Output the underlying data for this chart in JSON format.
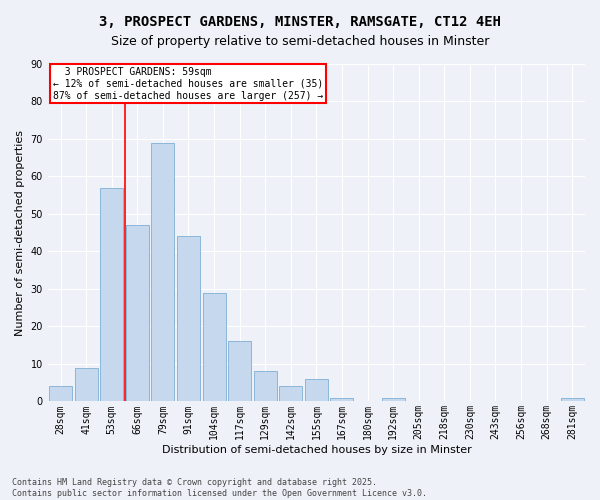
{
  "title": "3, PROSPECT GARDENS, MINSTER, RAMSGATE, CT12 4EH",
  "subtitle": "Size of property relative to semi-detached houses in Minster",
  "xlabel": "Distribution of semi-detached houses by size in Minster",
  "ylabel": "Number of semi-detached properties",
  "categories": [
    "28sqm",
    "41sqm",
    "53sqm",
    "66sqm",
    "79sqm",
    "91sqm",
    "104sqm",
    "117sqm",
    "129sqm",
    "142sqm",
    "155sqm",
    "167sqm",
    "180sqm",
    "192sqm",
    "205sqm",
    "218sqm",
    "230sqm",
    "243sqm",
    "256sqm",
    "268sqm",
    "281sqm"
  ],
  "values": [
    4,
    9,
    57,
    47,
    69,
    44,
    29,
    16,
    8,
    4,
    6,
    1,
    0,
    1,
    0,
    0,
    0,
    0,
    0,
    0,
    1
  ],
  "bar_color": "#c5d8ed",
  "bar_edge_color": "#7fafd4",
  "vline_x": 2.5,
  "vline_color": "red",
  "property_label": "3 PROSPECT GARDENS: 59sqm",
  "pct_smaller": 12,
  "pct_larger": 87,
  "n_smaller": 35,
  "n_larger": 257,
  "annotation_box_color": "red",
  "annotation_box_facecolor": "white",
  "ylim": [
    0,
    90
  ],
  "yticks": [
    0,
    10,
    20,
    30,
    40,
    50,
    60,
    70,
    80,
    90
  ],
  "footnote": "Contains HM Land Registry data © Crown copyright and database right 2025.\nContains public sector information licensed under the Open Government Licence v3.0.",
  "title_fontsize": 10,
  "label_fontsize": 8,
  "tick_fontsize": 7,
  "footnote_fontsize": 6,
  "annotation_fontsize": 7,
  "background_color": "#eef2f8"
}
